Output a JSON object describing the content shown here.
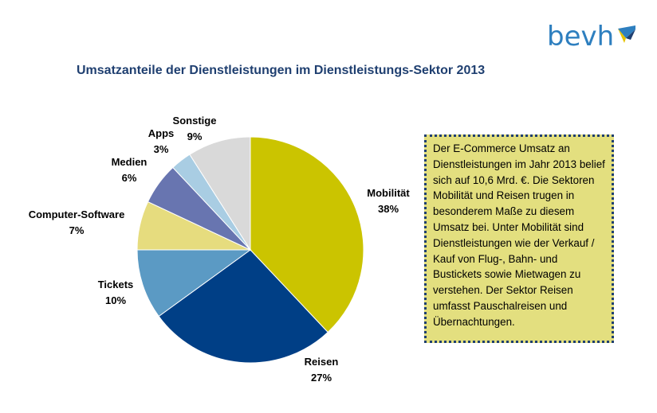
{
  "logo": {
    "text": "bevh"
  },
  "title": "Umsatzanteile der Dienstleistungen im Dienstleistungs-Sektor 2013",
  "info_box": {
    "text": "Der E-Commerce Umsatz an Dienstleistungen im Jahr 2013 belief sich auf 10,6 Mrd. €. Die Sektoren Mobilität und Reisen trugen in besonderem Maße zu diesem Umsatz bei. Unter Mobilität sind Dienstleistungen wie der Verkauf / Kauf von Flug-, Bahn- und Bustickets sowie Mietwagen zu verstehen. Der Sektor Reisen umfasst Pauschalreisen und Übernachtungen."
  },
  "colors": {
    "title": "#1f3f70",
    "logo": "#2e7fbf",
    "box_bg": "#e3df7f",
    "box_border": "#1f3f70"
  },
  "chart_data": {
    "type": "pie",
    "title": "Umsatzanteile der Dienstleistungen im Dienstleistungs-Sektor 2013",
    "start": "12 o'clock, clockwise",
    "slices": [
      {
        "label": "Mobilität",
        "pct_label": "38%",
        "value": 38,
        "color": "#cbc400"
      },
      {
        "label": "Reisen",
        "pct_label": "27%",
        "value": 27,
        "color": "#003f86"
      },
      {
        "label": "Tickets",
        "pct_label": "10%",
        "value": 10,
        "color": "#5b9ac4"
      },
      {
        "label": "Computer-Software",
        "pct_label": "7%",
        "value": 7,
        "color": "#e6dc7e"
      },
      {
        "label": "Medien",
        "pct_label": "6%",
        "value": 6,
        "color": "#6875b0"
      },
      {
        "label": "Apps",
        "pct_label": "3%",
        "value": 3,
        "color": "#a9cde3"
      },
      {
        "label": "Sonstige",
        "pct_label": "9%",
        "value": 9,
        "color": "#d9d9d9"
      }
    ]
  }
}
